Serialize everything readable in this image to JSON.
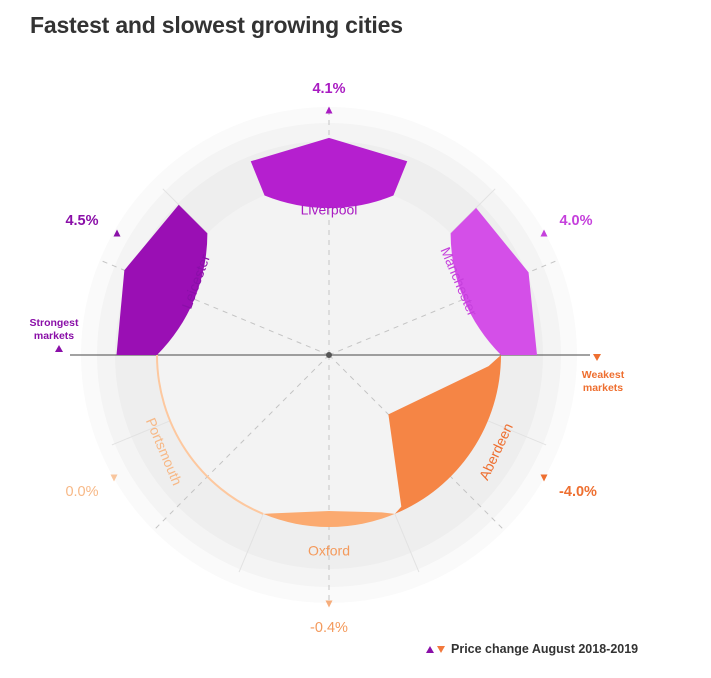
{
  "title": "Fastest and slowest growing cities",
  "chart_data": {
    "type": "radial-bar",
    "series_label": "Price change August 2018-2019",
    "ends": {
      "left": "Strongest markets",
      "right": "Weakest markets"
    },
    "categories": [
      "Leicester",
      "Liverpool",
      "Manchester",
      "Aberdeen",
      "Oxford",
      "Portsmouth"
    ],
    "values": [
      4.5,
      4.1,
      4.0,
      -4.0,
      -0.4,
      0.0
    ],
    "value_labels": [
      "4.5%",
      "4.1%",
      "4.0%",
      "-4.0%",
      "-0.4%",
      "0.0%"
    ],
    "colors": [
      "#9a0fb4",
      "#b51fcf",
      "#d44fe8",
      "#f58545",
      "#fbaa70",
      "#fdc89f"
    ],
    "label_colors": [
      "#8a0fa8",
      "#a91cc2",
      "#c540dc",
      "#ee6f30",
      "#f49a5c",
      "#f7b886"
    ]
  }
}
